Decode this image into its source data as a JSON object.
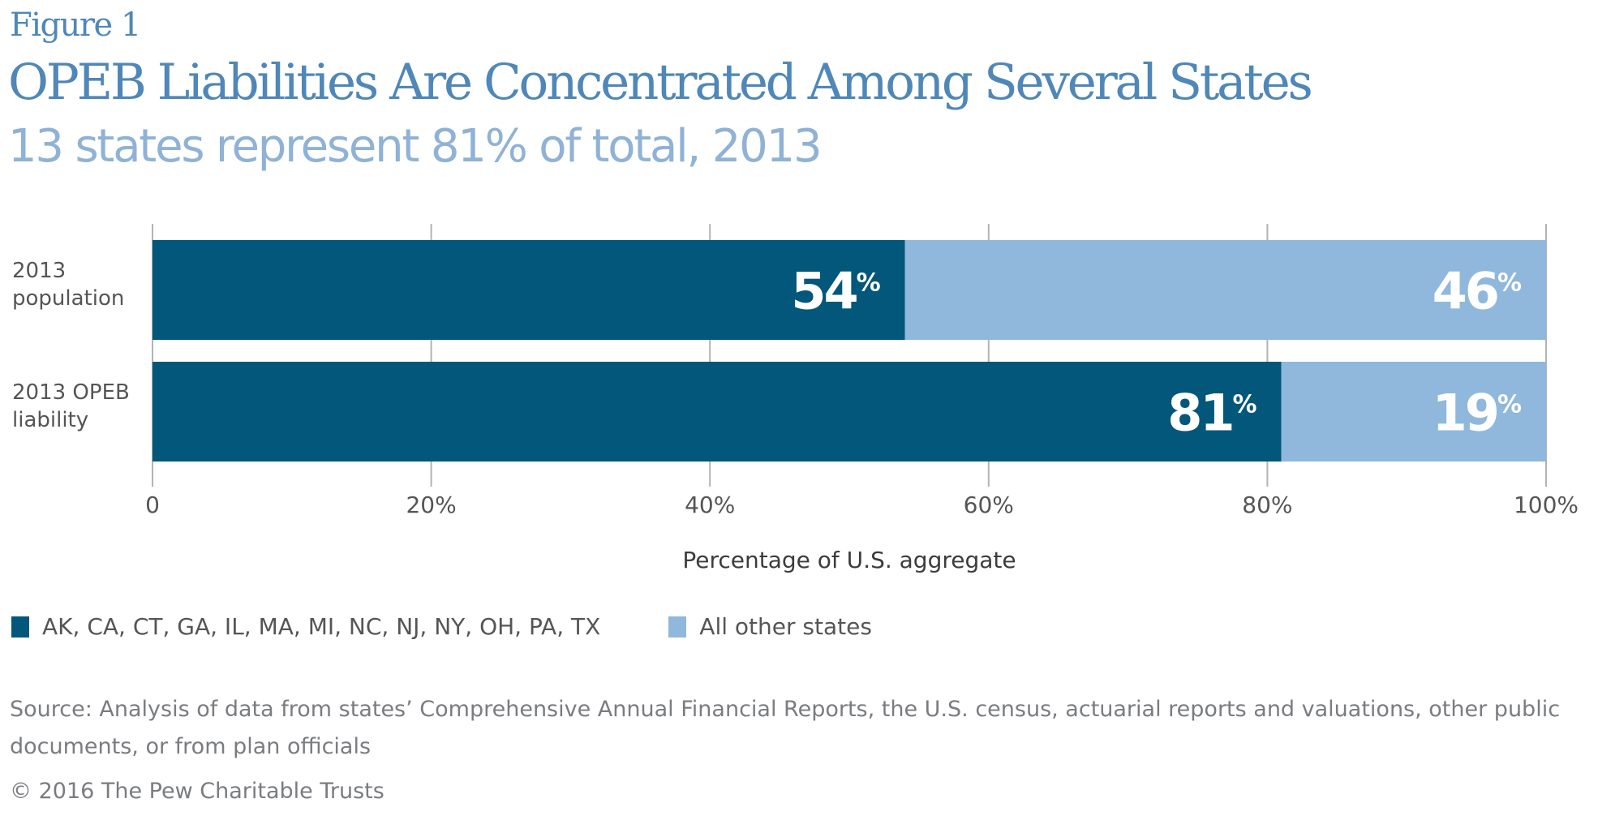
{
  "header": {
    "figure_label": "Figure 1",
    "title": "OPEB Liabilities Are Concentrated Among Several States",
    "subtitle": "13 states represent 81% of total, 2013"
  },
  "colors": {
    "title": "#4f87b8",
    "subtitle": "#8fb2d6",
    "series_13_states": "#02577a",
    "series_other": "#8fb8dc",
    "grid": "#b3b3b3",
    "text": "#555555",
    "footnote": "#7a7c80"
  },
  "chart_data": {
    "type": "bar",
    "orientation": "horizontal",
    "stacked": true,
    "title": "OPEB Liabilities Are Concentrated Among Several States",
    "subtitle": "13 states represent 81% of total, 2013",
    "categories": [
      [
        "2013",
        "population"
      ],
      [
        "2013 OPEB",
        "liability"
      ]
    ],
    "series": [
      {
        "name": "AK, CA, CT, GA, IL, MA, MI, NC, NJ, NY, OH, PA, TX",
        "values": [
          54,
          81
        ],
        "color": "#02577a"
      },
      {
        "name": "All other states",
        "values": [
          46,
          19
        ],
        "color": "#8fb8dc"
      }
    ],
    "data_label_suffix": "%",
    "xlabel": "Percentage of U.S. aggregate",
    "ylabel": "",
    "xlim": [
      0,
      100
    ],
    "xticks": [
      0,
      20,
      40,
      60,
      80,
      100
    ],
    "xtick_labels": [
      "0",
      "20%",
      "40%",
      "60%",
      "80%",
      "100%"
    ],
    "grid": "vertical",
    "legend_position": "bottom-left"
  },
  "footer": {
    "source": "Source: Analysis of data from states’ Comprehensive Annual Financial Reports, the U.S. census, actuarial reports and valuations, other public documents, or from plan officials",
    "copyright": "© 2016 The Pew Charitable Trusts"
  }
}
